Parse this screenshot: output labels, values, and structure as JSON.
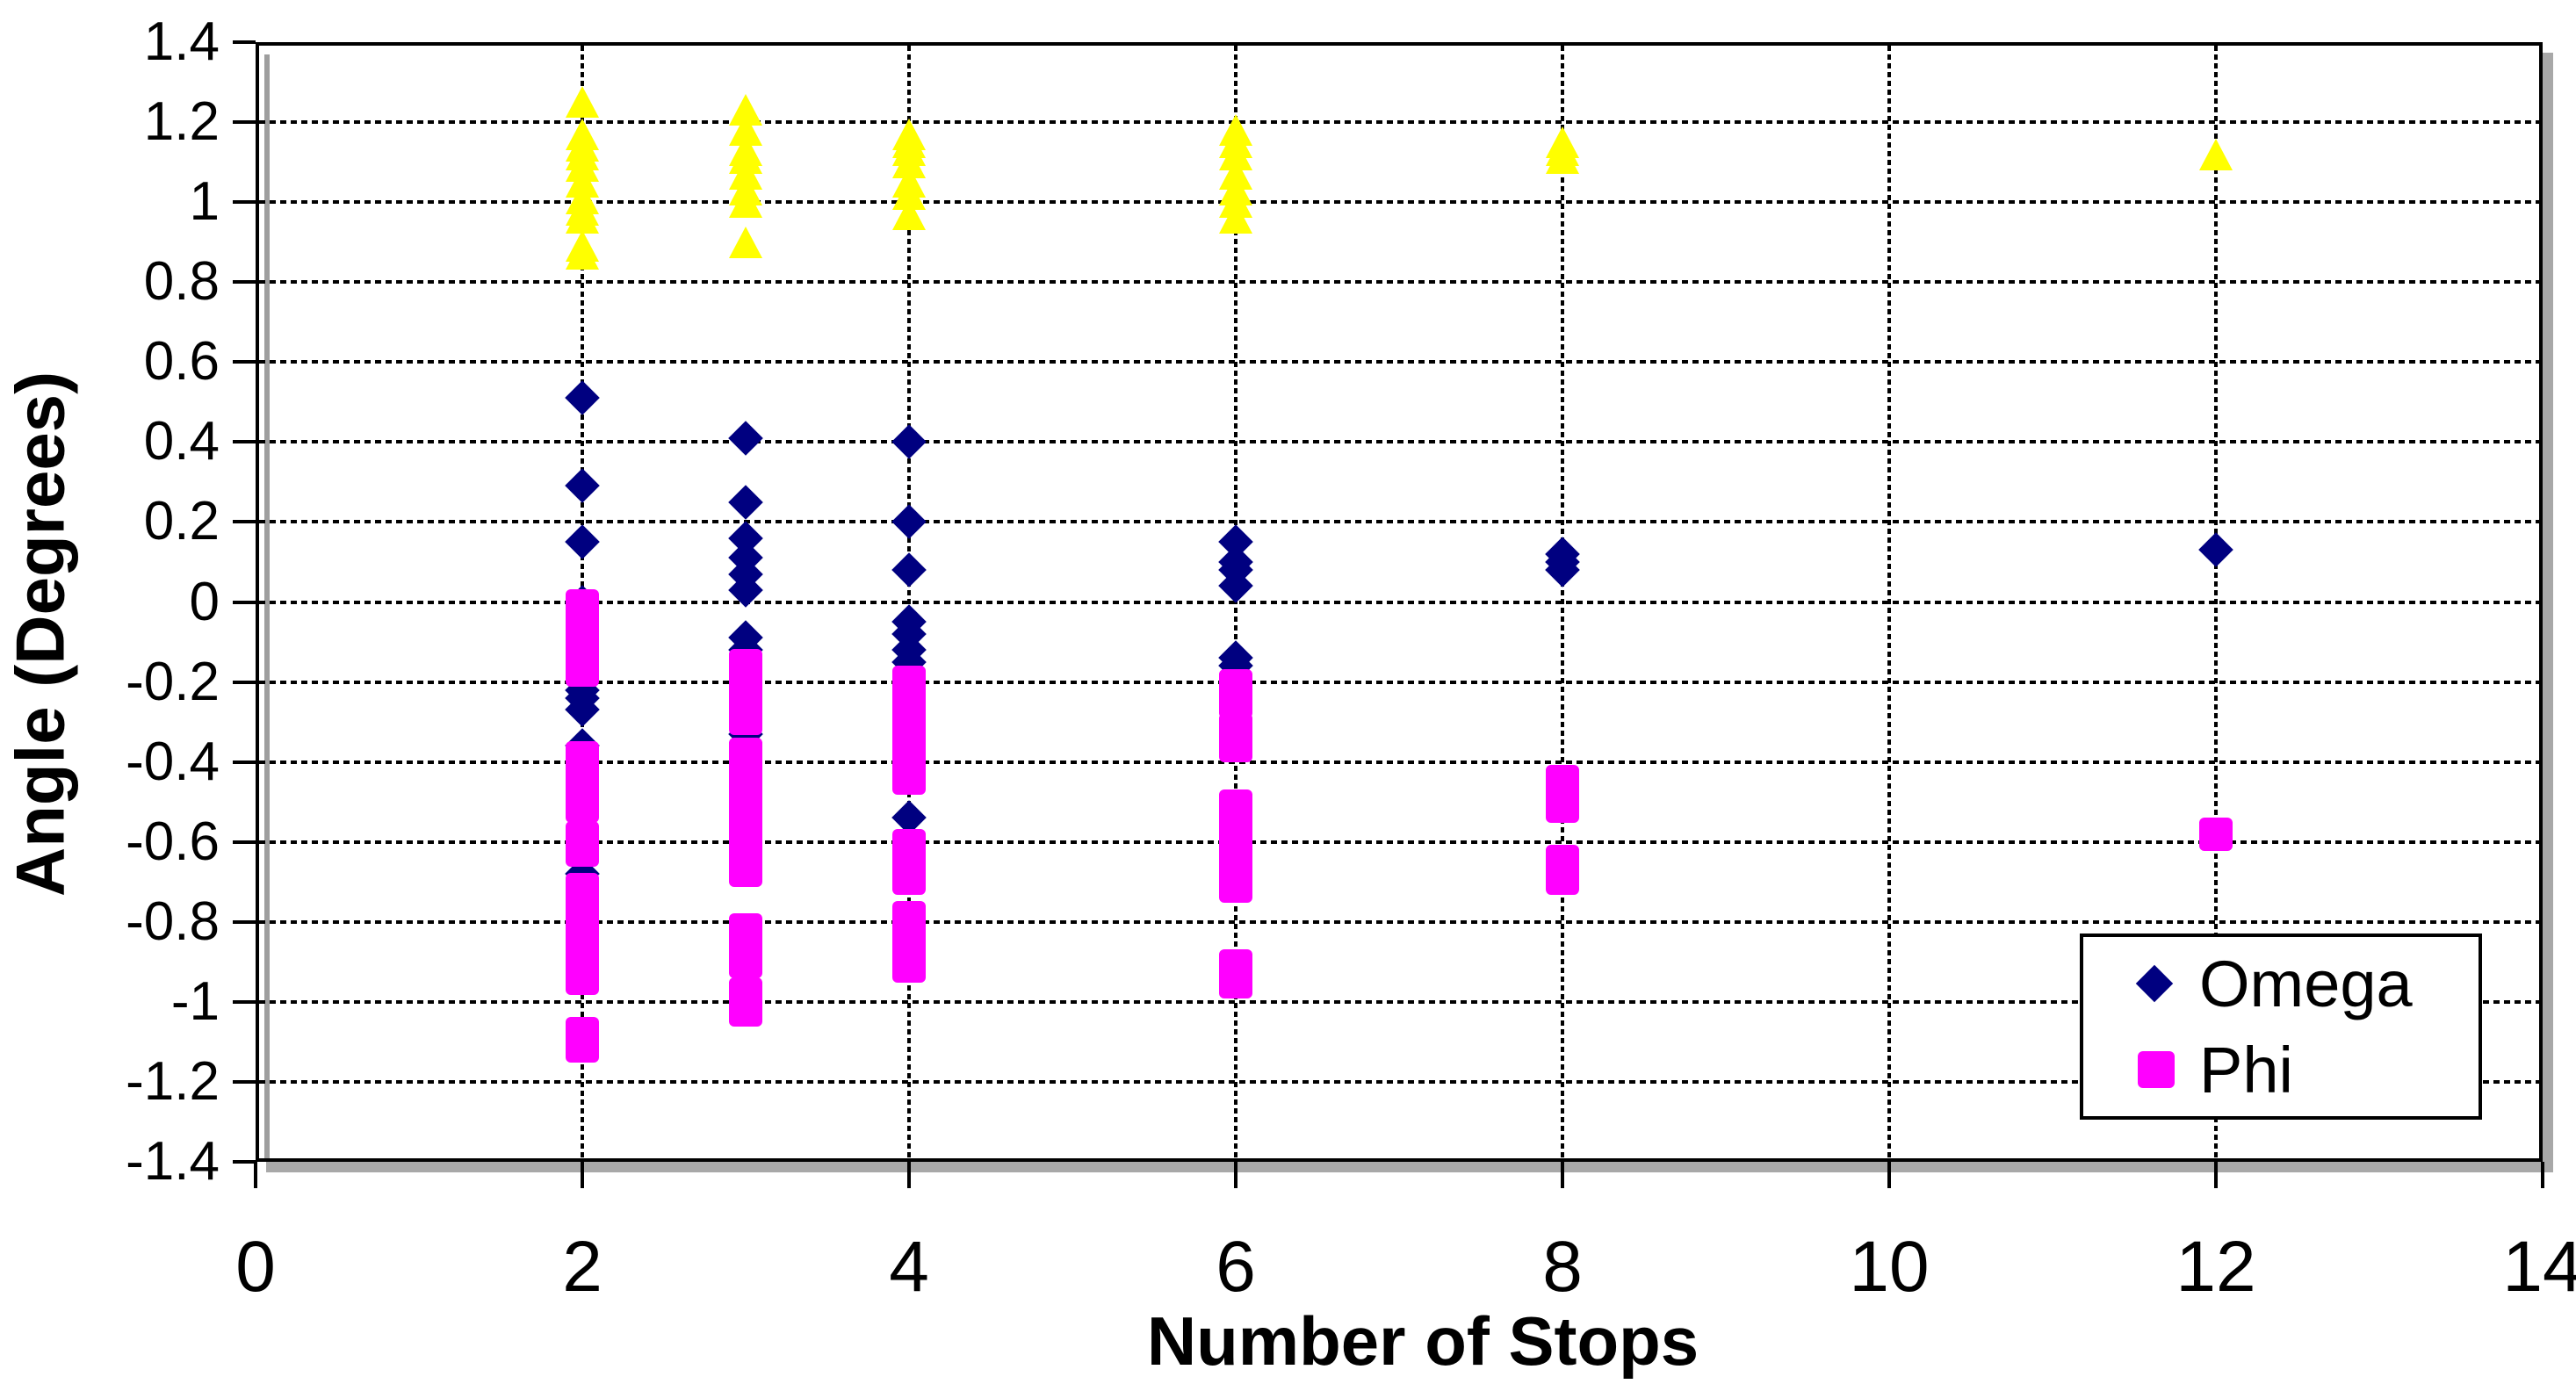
{
  "chart": {
    "y_axis": {
      "title": "Angle (Degrees)",
      "tick_labels": [
        "1.4",
        "1.2",
        "1",
        "0.8",
        "0.6",
        "0.4",
        "0.2",
        "0",
        "-0.2",
        "-0.4",
        "-0.6",
        "-0.8",
        "-1",
        "-1.2",
        "-1.4"
      ]
    },
    "x_axis": {
      "title": "Number of Stops",
      "tick_labels": [
        "0",
        "2",
        "4",
        "6",
        "8",
        "10",
        "12",
        "14"
      ]
    },
    "legend": {
      "items": [
        {
          "label": "Omega",
          "marker": "diamond",
          "color": "#000080"
        },
        {
          "label": "Phi",
          "marker": "square",
          "color": "#FF00FF"
        }
      ]
    },
    "colors": {
      "omega": "#000080",
      "phi": "#FF00FF",
      "triangle_series": "#FFFF00",
      "gridline": "#000000",
      "frame_shadow": "#a8a8a8",
      "background": "#ffffff"
    }
  },
  "chart_data": {
    "type": "scatter",
    "title": "",
    "xlabel": "Number of Stops",
    "ylabel": "Angle (Degrees)",
    "xlim": [
      0,
      14
    ],
    "ylim": [
      -1.4,
      1.4
    ],
    "x_ticks": [
      0,
      2,
      4,
      6,
      8,
      10,
      12,
      14
    ],
    "y_tick_step": 0.2,
    "grid": "dashed horizontal and vertical major gridlines",
    "legend_position": "inside plot, bottom-right",
    "series": [
      {
        "name": "",
        "marker": "triangle",
        "color": "#FFFF00",
        "in_legend": false,
        "points": [
          [
            2,
            1.25
          ],
          [
            2,
            1.17
          ],
          [
            2,
            1.14
          ],
          [
            2,
            1.12
          ],
          [
            2,
            1.09
          ],
          [
            2,
            1.05
          ],
          [
            2,
            1.01
          ],
          [
            2,
            0.98
          ],
          [
            2,
            0.96
          ],
          [
            2,
            0.89
          ],
          [
            2,
            0.87
          ],
          [
            3,
            1.23
          ],
          [
            3,
            1.18
          ],
          [
            3,
            1.13
          ],
          [
            3,
            1.11
          ],
          [
            3,
            1.07
          ],
          [
            3,
            1.03
          ],
          [
            3,
            1.0
          ],
          [
            3,
            0.9
          ],
          [
            4,
            1.17
          ],
          [
            4,
            1.15
          ],
          [
            4,
            1.13
          ],
          [
            4,
            1.1
          ],
          [
            4,
            1.05
          ],
          [
            4,
            1.02
          ],
          [
            4,
            0.97
          ],
          [
            6,
            1.18
          ],
          [
            6,
            1.15
          ],
          [
            6,
            1.12
          ],
          [
            6,
            1.07
          ],
          [
            6,
            1.03
          ],
          [
            6,
            1.0
          ],
          [
            6,
            0.96
          ],
          [
            8,
            1.15
          ],
          [
            8,
            1.13
          ],
          [
            8,
            1.11
          ],
          [
            12,
            1.12
          ]
        ]
      },
      {
        "name": "Omega",
        "marker": "diamond",
        "color": "#000080",
        "in_legend": true,
        "points": [
          [
            2,
            0.51
          ],
          [
            2,
            0.29
          ],
          [
            2,
            0.15
          ],
          [
            2,
            0.0
          ],
          [
            2,
            -0.22
          ],
          [
            2,
            -0.24
          ],
          [
            2,
            -0.27
          ],
          [
            2,
            -0.36
          ],
          [
            2,
            -0.68
          ],
          [
            3,
            0.41
          ],
          [
            3,
            0.25
          ],
          [
            3,
            0.16
          ],
          [
            3,
            0.11
          ],
          [
            3,
            0.07
          ],
          [
            3,
            0.03
          ],
          [
            3,
            -0.09
          ],
          [
            3,
            -0.12
          ],
          [
            3,
            -0.33
          ],
          [
            4,
            0.4
          ],
          [
            4,
            0.2
          ],
          [
            4,
            0.08
          ],
          [
            4,
            -0.05
          ],
          [
            4,
            -0.08
          ],
          [
            4,
            -0.12
          ],
          [
            4,
            -0.15
          ],
          [
            4,
            -0.54
          ],
          [
            6,
            0.15
          ],
          [
            6,
            0.1
          ],
          [
            6,
            0.08
          ],
          [
            6,
            0.04
          ],
          [
            6,
            -0.14
          ],
          [
            6,
            -0.16
          ],
          [
            8,
            0.12
          ],
          [
            8,
            0.1
          ],
          [
            8,
            0.08
          ],
          [
            12,
            0.13
          ]
        ]
      },
      {
        "name": "Phi",
        "marker": "square",
        "color": "#FF00FF",
        "in_legend": true,
        "points": [
          [
            2,
            -0.01
          ],
          [
            2,
            -0.06
          ],
          [
            2,
            -0.1
          ],
          [
            2,
            -0.15
          ],
          [
            2,
            -0.17
          ],
          [
            2,
            -0.39
          ],
          [
            2,
            -0.43
          ],
          [
            2,
            -0.47
          ],
          [
            2,
            -0.51
          ],
          [
            2,
            -0.59
          ],
          [
            2,
            -0.62
          ],
          [
            2,
            -0.72
          ],
          [
            2,
            -0.76
          ],
          [
            2,
            -0.8
          ],
          [
            2,
            -0.85
          ],
          [
            2,
            -0.89
          ],
          [
            2,
            -0.94
          ],
          [
            2,
            -1.08
          ],
          [
            2,
            -1.11
          ],
          [
            3,
            -0.16
          ],
          [
            3,
            -0.2
          ],
          [
            3,
            -0.25
          ],
          [
            3,
            -0.29
          ],
          [
            3,
            -0.38
          ],
          [
            3,
            -0.42
          ],
          [
            3,
            -0.48
          ],
          [
            3,
            -0.52
          ],
          [
            3,
            -0.56
          ],
          [
            3,
            -0.6
          ],
          [
            3,
            -0.63
          ],
          [
            3,
            -0.67
          ],
          [
            3,
            -0.82
          ],
          [
            3,
            -0.86
          ],
          [
            3,
            -0.9
          ],
          [
            3,
            -0.98
          ],
          [
            3,
            -1.02
          ],
          [
            4,
            -0.2
          ],
          [
            4,
            -0.24
          ],
          [
            4,
            -0.28
          ],
          [
            4,
            -0.32
          ],
          [
            4,
            -0.36
          ],
          [
            4,
            -0.4
          ],
          [
            4,
            -0.44
          ],
          [
            4,
            -0.61
          ],
          [
            4,
            -0.65
          ],
          [
            4,
            -0.69
          ],
          [
            4,
            -0.79
          ],
          [
            4,
            -0.83
          ],
          [
            4,
            -0.87
          ],
          [
            4,
            -0.91
          ],
          [
            6,
            -0.21
          ],
          [
            6,
            -0.25
          ],
          [
            6,
            -0.32
          ],
          [
            6,
            -0.36
          ],
          [
            6,
            -0.51
          ],
          [
            6,
            -0.55
          ],
          [
            6,
            -0.59
          ],
          [
            6,
            -0.63
          ],
          [
            6,
            -0.67
          ],
          [
            6,
            -0.71
          ],
          [
            6,
            -0.91
          ],
          [
            6,
            -0.95
          ],
          [
            8,
            -0.45
          ],
          [
            8,
            -0.48
          ],
          [
            8,
            -0.51
          ],
          [
            8,
            -0.65
          ],
          [
            8,
            -0.69
          ],
          [
            12,
            -0.58
          ]
        ]
      }
    ]
  }
}
